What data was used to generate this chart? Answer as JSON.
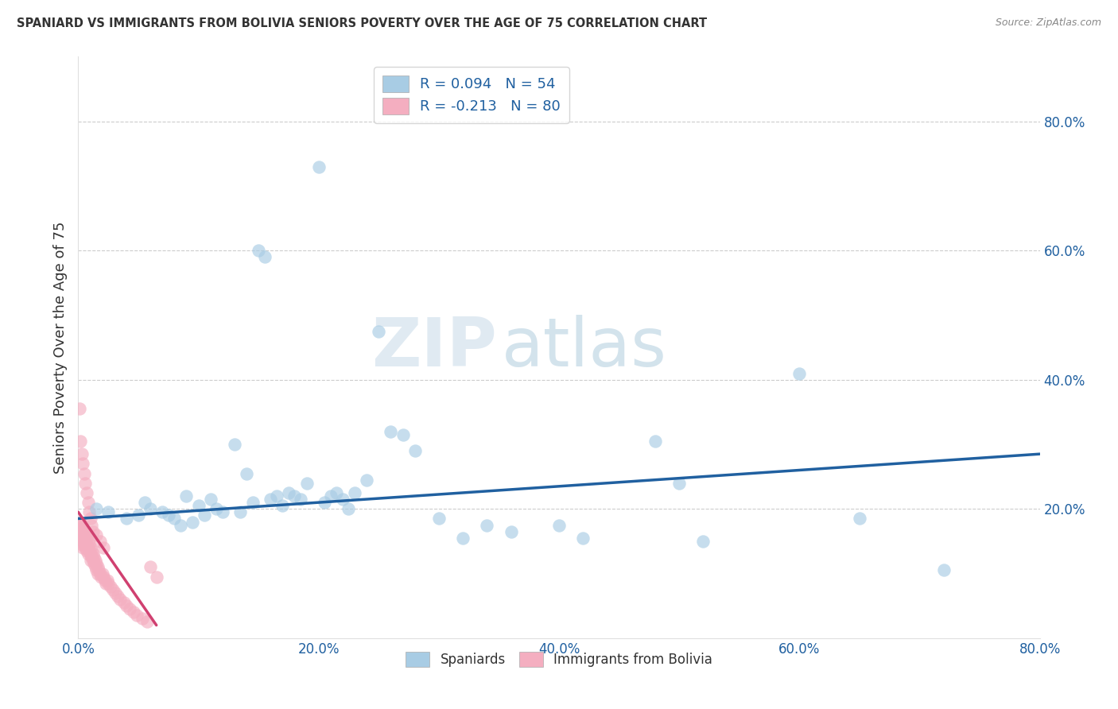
{
  "title": "SPANIARD VS IMMIGRANTS FROM BOLIVIA SENIORS POVERTY OVER THE AGE OF 75 CORRELATION CHART",
  "source": "Source: ZipAtlas.com",
  "ylabel": "Seniors Poverty Over the Age of 75",
  "legend_label1": "R = 0.094   N = 54",
  "legend_label2": "R = -0.213   N = 80",
  "legend_bottom1": "Spaniards",
  "legend_bottom2": "Immigrants from Bolivia",
  "blue_color": "#a8cce4",
  "pink_color": "#f4aec0",
  "blue_line_color": "#2060a0",
  "pink_line_color": "#d04070",
  "watermark_zip": "ZIP",
  "watermark_atlas": "atlas",
  "xlim": [
    0.0,
    0.8
  ],
  "ylim": [
    0.0,
    0.9
  ],
  "spaniards_x": [
    0.015,
    0.025,
    0.04,
    0.05,
    0.055,
    0.06,
    0.07,
    0.075,
    0.08,
    0.085,
    0.09,
    0.095,
    0.1,
    0.105,
    0.11,
    0.115,
    0.12,
    0.13,
    0.135,
    0.14,
    0.145,
    0.15,
    0.155,
    0.16,
    0.165,
    0.17,
    0.175,
    0.18,
    0.185,
    0.19,
    0.2,
    0.205,
    0.21,
    0.215,
    0.22,
    0.225,
    0.23,
    0.24,
    0.25,
    0.26,
    0.27,
    0.28,
    0.3,
    0.32,
    0.34,
    0.36,
    0.4,
    0.42,
    0.48,
    0.5,
    0.52,
    0.6,
    0.65,
    0.72
  ],
  "spaniards_y": [
    0.2,
    0.195,
    0.185,
    0.19,
    0.21,
    0.2,
    0.195,
    0.19,
    0.185,
    0.175,
    0.22,
    0.18,
    0.205,
    0.19,
    0.215,
    0.2,
    0.195,
    0.3,
    0.195,
    0.255,
    0.21,
    0.6,
    0.59,
    0.215,
    0.22,
    0.205,
    0.225,
    0.22,
    0.215,
    0.24,
    0.73,
    0.21,
    0.22,
    0.225,
    0.215,
    0.2,
    0.225,
    0.245,
    0.475,
    0.32,
    0.315,
    0.29,
    0.185,
    0.155,
    0.175,
    0.165,
    0.175,
    0.155,
    0.305,
    0.24,
    0.15,
    0.41,
    0.185,
    0.105
  ],
  "bolivia_x": [
    0.001,
    0.001,
    0.002,
    0.002,
    0.002,
    0.003,
    0.003,
    0.003,
    0.003,
    0.004,
    0.004,
    0.004,
    0.004,
    0.005,
    0.005,
    0.005,
    0.006,
    0.006,
    0.006,
    0.007,
    0.007,
    0.007,
    0.008,
    0.008,
    0.008,
    0.009,
    0.009,
    0.01,
    0.01,
    0.01,
    0.011,
    0.011,
    0.012,
    0.012,
    0.013,
    0.013,
    0.014,
    0.014,
    0.015,
    0.015,
    0.016,
    0.016,
    0.017,
    0.018,
    0.019,
    0.02,
    0.021,
    0.022,
    0.023,
    0.024,
    0.025,
    0.027,
    0.029,
    0.031,
    0.033,
    0.035,
    0.038,
    0.04,
    0.043,
    0.046,
    0.049,
    0.053,
    0.057,
    0.001,
    0.002,
    0.003,
    0.004,
    0.005,
    0.006,
    0.007,
    0.008,
    0.009,
    0.01,
    0.011,
    0.012,
    0.015,
    0.018,
    0.021,
    0.06,
    0.065
  ],
  "bolivia_y": [
    0.175,
    0.165,
    0.18,
    0.17,
    0.16,
    0.175,
    0.165,
    0.155,
    0.145,
    0.17,
    0.16,
    0.15,
    0.14,
    0.165,
    0.155,
    0.145,
    0.16,
    0.15,
    0.14,
    0.155,
    0.145,
    0.135,
    0.15,
    0.14,
    0.13,
    0.145,
    0.135,
    0.14,
    0.13,
    0.12,
    0.135,
    0.125,
    0.13,
    0.12,
    0.125,
    0.115,
    0.12,
    0.11,
    0.115,
    0.105,
    0.11,
    0.1,
    0.105,
    0.1,
    0.095,
    0.1,
    0.095,
    0.09,
    0.085,
    0.09,
    0.085,
    0.08,
    0.075,
    0.07,
    0.065,
    0.06,
    0.055,
    0.05,
    0.045,
    0.04,
    0.035,
    0.03,
    0.025,
    0.355,
    0.305,
    0.285,
    0.27,
    0.255,
    0.24,
    0.225,
    0.21,
    0.195,
    0.185,
    0.175,
    0.165,
    0.16,
    0.15,
    0.14,
    0.11,
    0.095
  ],
  "spain_trend_x": [
    0.0,
    0.8
  ],
  "spain_trend_y": [
    0.185,
    0.285
  ],
  "bolivia_trend_x": [
    0.0,
    0.065
  ],
  "bolivia_trend_y": [
    0.195,
    0.02
  ]
}
